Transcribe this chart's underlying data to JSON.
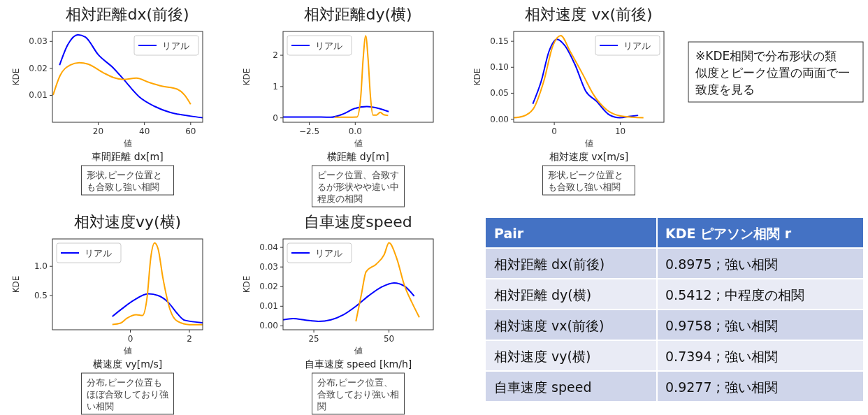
{
  "chart_data": [
    {
      "type": "line",
      "title": "相対距離dx(前後)",
      "xlabel": "値",
      "ylabel": "KDE",
      "annotations": [
        "車間距離 dx[m]",
        "形状,ピーク位置とも合致し強い相関"
      ],
      "xlim": [
        0.2,
        65.2
      ],
      "ylim": [
        0,
        0.0337
      ],
      "xticks": [
        20,
        40,
        60
      ],
      "yticks": [
        0.01,
        0.02,
        0.03
      ],
      "legend": "top right",
      "series": [
        {
          "name": "リアル",
          "color": "#0000ff",
          "x": [
            3.3,
            6.8,
            11.2,
            14.5,
            20,
            26.6,
            31,
            37.8,
            44.4,
            51,
            59.8,
            65.2
          ],
          "values": [
            0.0212,
            0.0287,
            0.0325,
            0.0316,
            0.0251,
            0.0201,
            0.0159,
            0.0094,
            0.0059,
            0.0037,
            0.0023,
            0.0017
          ]
        },
        {
          "color": "#ffa500",
          "x": [
            0.5,
            3.5,
            7.9,
            11.8,
            15.6,
            22.2,
            26.6,
            31,
            36.5,
            42,
            47.5,
            54.1,
            57.4,
            60
          ],
          "values": [
            0.0101,
            0.0173,
            0.0212,
            0.0221,
            0.0216,
            0.0184,
            0.0166,
            0.0159,
            0.0164,
            0.0148,
            0.0134,
            0.0123,
            0.0101,
            0.0067
          ]
        }
      ]
    },
    {
      "type": "line",
      "title": "相対距離dy(横)",
      "xlabel": "値",
      "ylabel": "KDE",
      "annotations": [
        "横距離 dy[m]",
        "ピーク位置、合致するが形状やや違い中程度の相関"
      ],
      "xlim": [
        -3.93,
        4.25
      ],
      "ylim": [
        -0.14,
        2.76
      ],
      "xticks": [
        {
          "value": -2.5,
          "label": "−2.5"
        },
        {
          "value": 0,
          "label": "0.0"
        }
      ],
      "yticks": [
        0,
        1,
        2
      ],
      "legend": "top left",
      "series": [
        {
          "name": "リアル",
          "color": "#0000ff",
          "x": [
            -3.93,
            -2.39,
            -1.34,
            -0.68,
            -0.03,
            0.63,
            1.29,
            1.82
          ],
          "values": [
            0.03,
            0.03,
            0.02,
            0.12,
            0.3,
            0.36,
            0.3,
            0.2
          ]
        },
        {
          "color": "#ffa500",
          "x": [
            -1.12,
            0.1,
            0.3,
            0.43,
            0.57,
            0.7,
            0.83,
            0.96,
            1.16,
            1.36,
            1.55,
            1.79
          ],
          "values": [
            0.02,
            0.03,
            0.67,
            1.88,
            2.62,
            1.88,
            0.67,
            0.09,
            0.09,
            0.18,
            0.1,
            0.08
          ]
        }
      ]
    },
    {
      "type": "line",
      "title": "相対速度 vx(前後)",
      "xlabel": "値",
      "ylabel": "KDE",
      "annotations": [
        "相対速度 vx[m/s]",
        "形状,ピーク位置とも合致し強い相関"
      ],
      "xlim": [
        -6.15,
        16.6
      ],
      "ylim": [
        -0.006,
        0.169
      ],
      "xticks": [
        0,
        10
      ],
      "yticks": [
        {
          "value": 0,
          "label": "0.00"
        },
        0.05,
        {
          "value": 0.1,
          "label": "0.10"
        },
        0.15
      ],
      "legend": "top right",
      "series": [
        {
          "name": "リアル",
          "color": "#0000ff",
          "x": [
            -3.25,
            -1.98,
            -0.79,
            0.4,
            1.59,
            3.17,
            4.76,
            6.35,
            8.33,
            9.92,
            11.5,
            12.7
          ],
          "values": [
            0.0295,
            0.073,
            0.131,
            0.154,
            0.142,
            0.104,
            0.054,
            0.035,
            0.0084,
            0.0027,
            0.0054,
            0.0073
          ]
        },
        {
          "color": "#ffa500",
          "x": [
            -6.15,
            -4.76,
            -3.17,
            -1.59,
            -0.2,
            0.99,
            2.38,
            4.37,
            5.95,
            7.94,
            9.92,
            11.9,
            13.5
          ],
          "values": [
            0.0027,
            0.0054,
            0.02,
            0.073,
            0.142,
            0.161,
            0.131,
            0.085,
            0.047,
            0.018,
            0.0065,
            0.0038,
            0.0027
          ]
        }
      ]
    },
    {
      "type": "other",
      "annotations": [
        "※KDE相関で分布形状の類似度とピーク位置の両面で一致度を見る"
      ]
    },
    {
      "type": "line",
      "title": "相対速度vy(横)",
      "xlabel": "値",
      "ylabel": "KDE",
      "annotations": [
        "横速度 vy[m/s]",
        "分布,ピーク位置もほぼ合致しており強い相関"
      ],
      "xlim": [
        -2.64,
        2.45
      ],
      "ylim": [
        -0.088,
        1.47
      ],
      "xticks": [
        0,
        2
      ],
      "yticks": [
        0.5,
        {
          "value": 1,
          "label": "1.0"
        }
      ],
      "legend": "top left",
      "series": [
        {
          "name": "リアル",
          "color": "#0000ff",
          "x": [
            -0.61,
            -0.29,
            0.12,
            0.61,
            0.94,
            1.27,
            1.59,
            1.84,
            2.45
          ],
          "values": [
            0.14,
            0.27,
            0.42,
            0.53,
            0.5,
            0.39,
            0.19,
            0.075,
            0.033
          ]
        },
        {
          "color": "#ffa500",
          "x": [
            -0.61,
            -0.33,
            -0.12,
            0.2,
            0.41,
            0.57,
            0.69,
            0.82,
            0.94,
            1.1,
            1.35,
            1.59,
            2.0,
            2.45
          ],
          "values": [
            0.003,
            0.026,
            0.108,
            0.17,
            0.157,
            0.48,
            1.14,
            1.4,
            1.3,
            0.81,
            0.25,
            0.059,
            0,
            0
          ]
        }
      ]
    },
    {
      "type": "line",
      "title": "自車速度speed",
      "xlabel": "値",
      "ylabel": "KDE",
      "annotations": [
        "自車速度 speed [km/h]",
        "分布,ピーク位置、合致しており強い相関"
      ],
      "xlim": [
        14.75,
        64.75
      ],
      "ylim": [
        -0.002,
        0.0443
      ],
      "xticks": [
        25,
        50
      ],
      "yticks": [
        {
          "value": 0,
          "label": "0.00"
        },
        0.01,
        0.02,
        0.03,
        0.04
      ],
      "legend": "top left",
      "series": [
        {
          "name": "リアル",
          "color": "#0000ff",
          "x": [
            14.75,
            18.1,
            22.3,
            26.5,
            30.7,
            34.9,
            39.1,
            43.3,
            47.5,
            51.7,
            55.1,
            58.4
          ],
          "values": [
            0.0031,
            0.0037,
            0.0029,
            0.0023,
            0.0031,
            0.0057,
            0.0101,
            0.0154,
            0.0198,
            0.0219,
            0.0203,
            0.0151
          ]
        },
        {
          "color": "#ffa500",
          "x": [
            39,
            40.8,
            42.4,
            45.8,
            48.4,
            50,
            52.6,
            55.1,
            57.6,
            60.1
          ],
          "values": [
            0.0023,
            0.0159,
            0.0276,
            0.0315,
            0.0363,
            0.0423,
            0.0343,
            0.0208,
            0.012,
            0.0043
          ]
        }
      ]
    },
    {
      "type": "other",
      "annotations": [
        "Pair",
        "KDE ピアソン相関 r",
        "相対距離 dx(前後)",
        "0.8975 ; 強い相関",
        "相対距離 dy(横)",
        "0.5412 ; 中程度の相関",
        "相対速度 vx(前後)",
        "0.9758 ; 強い相関",
        "相対速度 vy(横)",
        "0.7394 ; 強い相関",
        "自車速度 speed",
        "0.9277 ; 強い相関"
      ]
    }
  ]
}
